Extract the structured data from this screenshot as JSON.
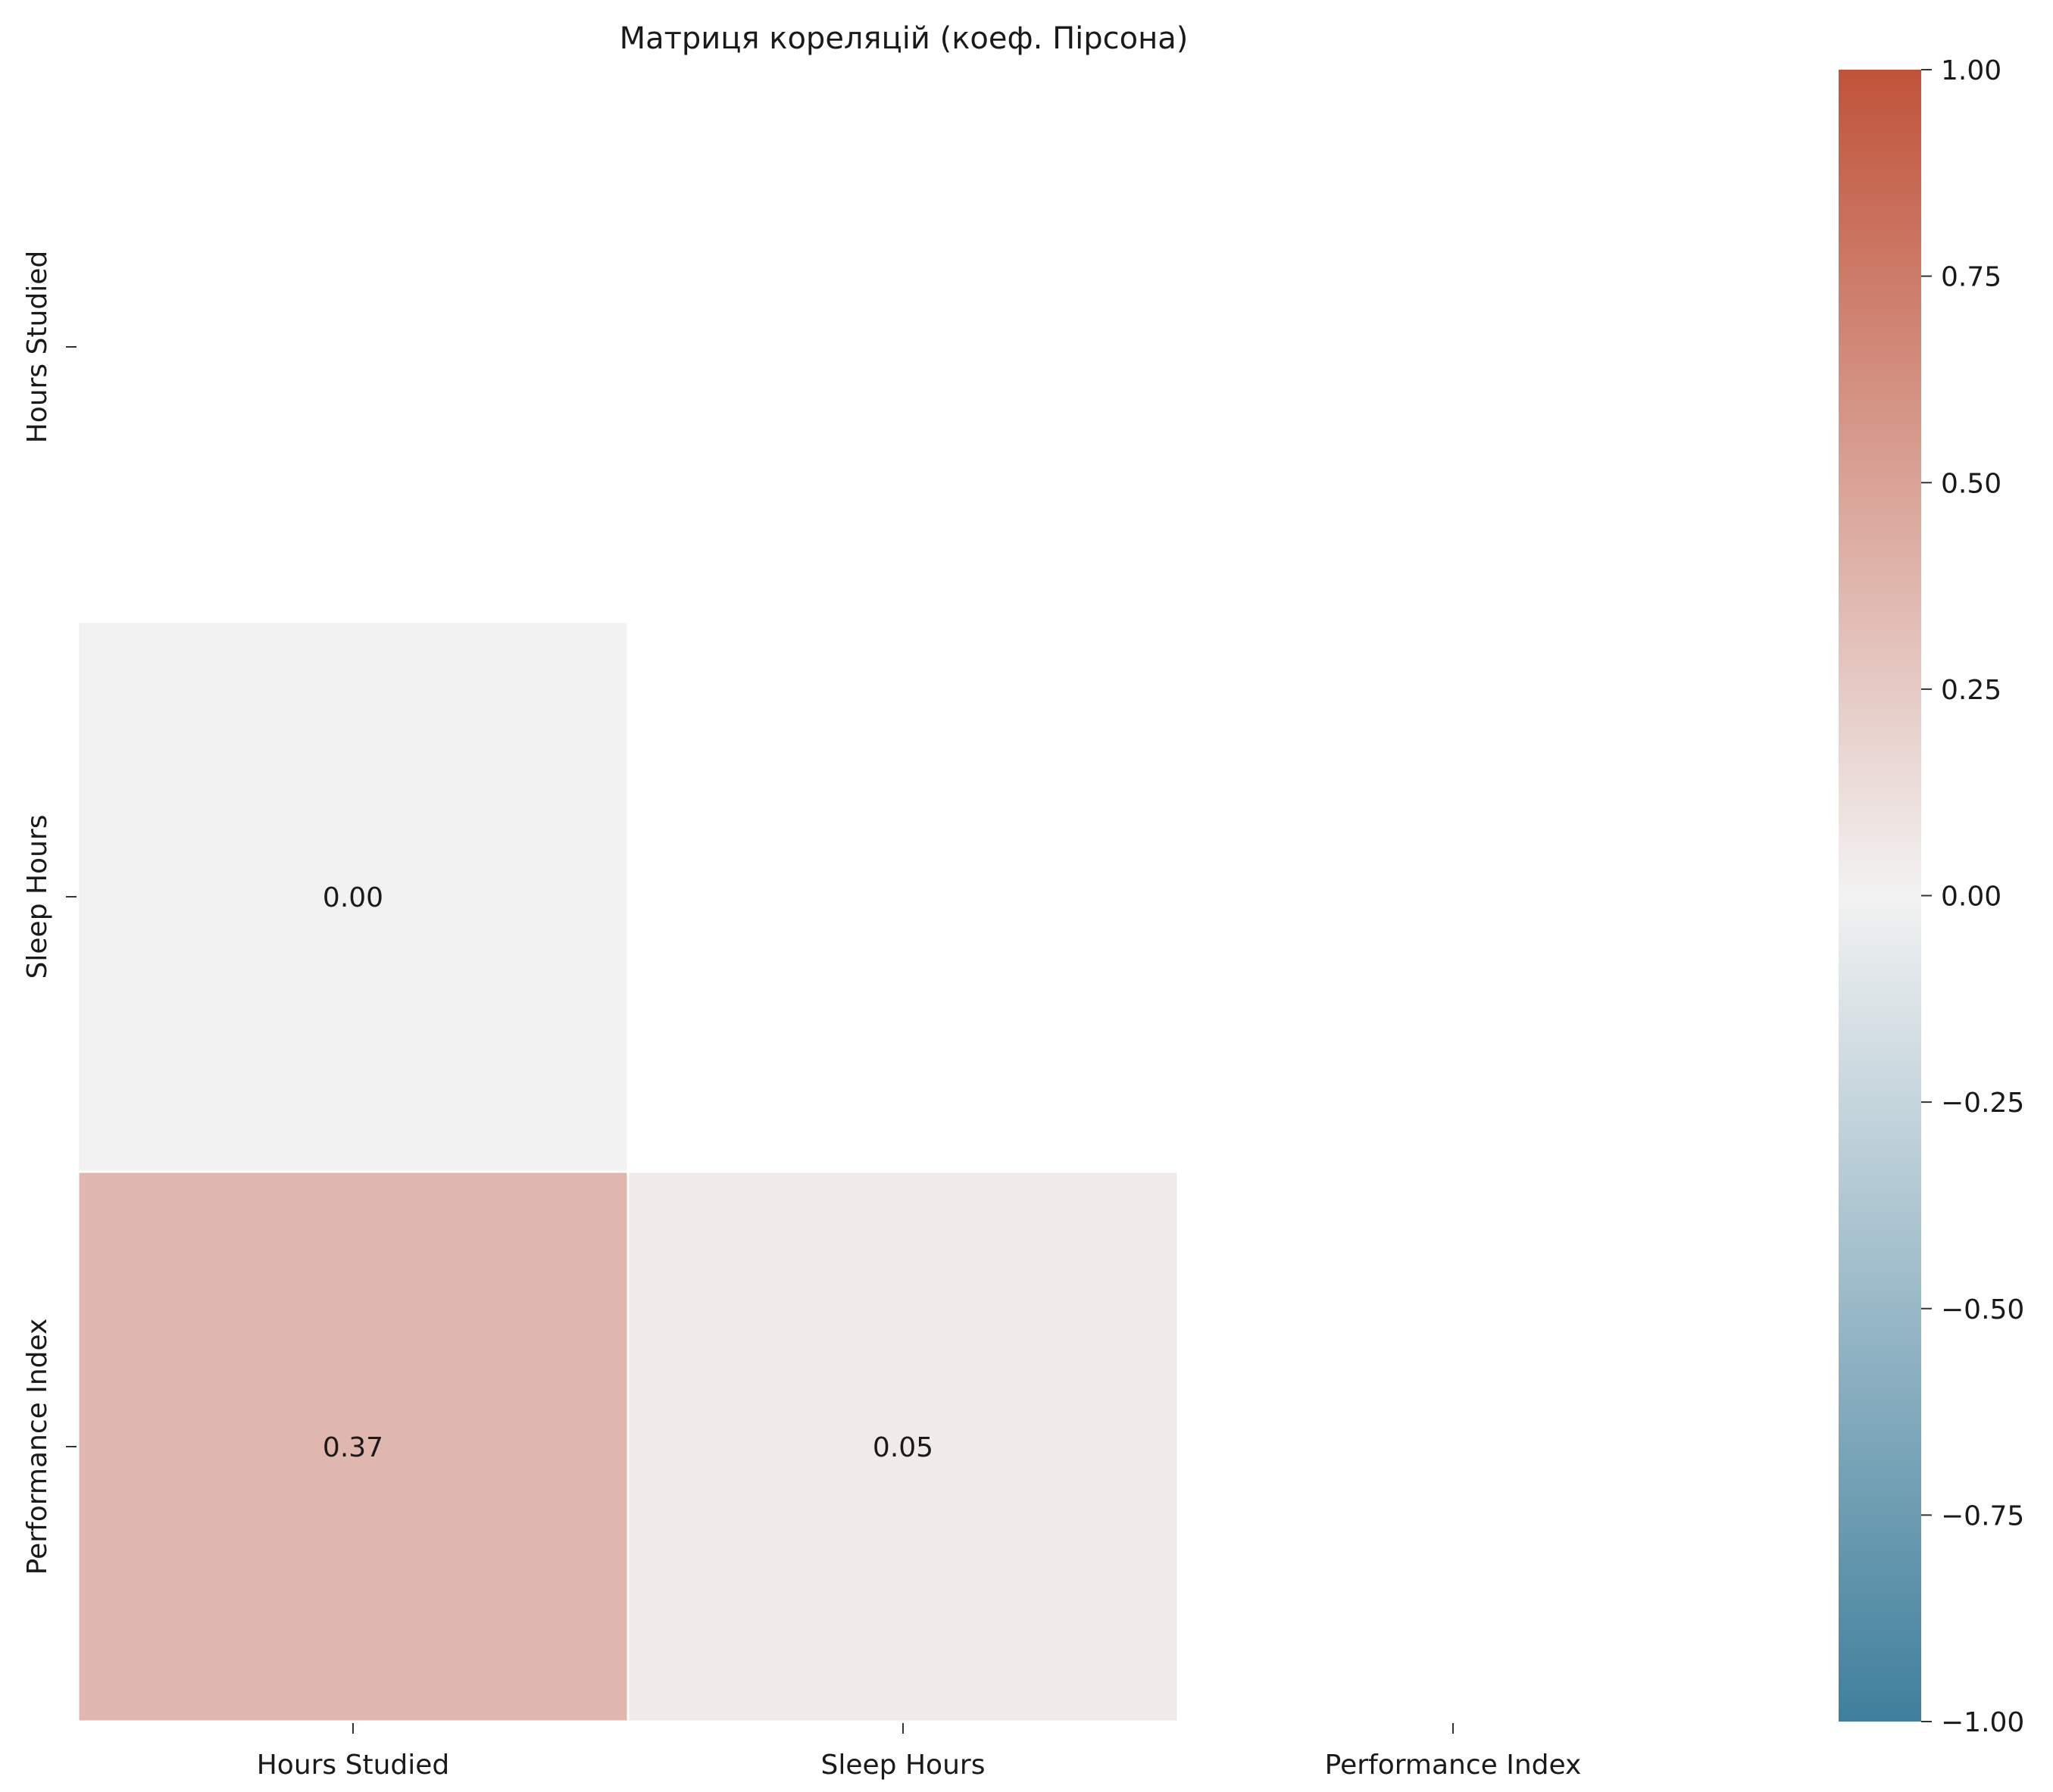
{
  "chart_data": {
    "type": "heatmap",
    "title": "Матриця кореляцій (коеф. Пірсона)",
    "row_labels": [
      "Hours Studied",
      "Sleep Hours",
      "Performance Index"
    ],
    "col_labels": [
      "Hours Studied",
      "Sleep Hours",
      "Performance Index"
    ],
    "mask": "upper-triangle-including-diagonal",
    "cells": [
      {
        "row": 1,
        "col": 0,
        "value": 0.0,
        "label": "0.00"
      },
      {
        "row": 2,
        "col": 0,
        "value": 0.37,
        "label": "0.37"
      },
      {
        "row": 2,
        "col": 1,
        "value": 0.05,
        "label": "0.05"
      }
    ],
    "colorbar": {
      "vmin": -1.0,
      "vmax": 1.0,
      "ticks": [
        1.0,
        0.75,
        0.5,
        0.25,
        0.0,
        -0.25,
        -0.5,
        -0.75,
        -1.0
      ],
      "tick_labels": [
        "1.00",
        "0.75",
        "0.50",
        "0.25",
        "0.00",
        "−0.25",
        "−0.50",
        "−0.75",
        "−1.00"
      ],
      "colors": {
        "low": "#3f7f9c",
        "mid": "#f2f2f2",
        "high": "#c0533a"
      }
    }
  }
}
